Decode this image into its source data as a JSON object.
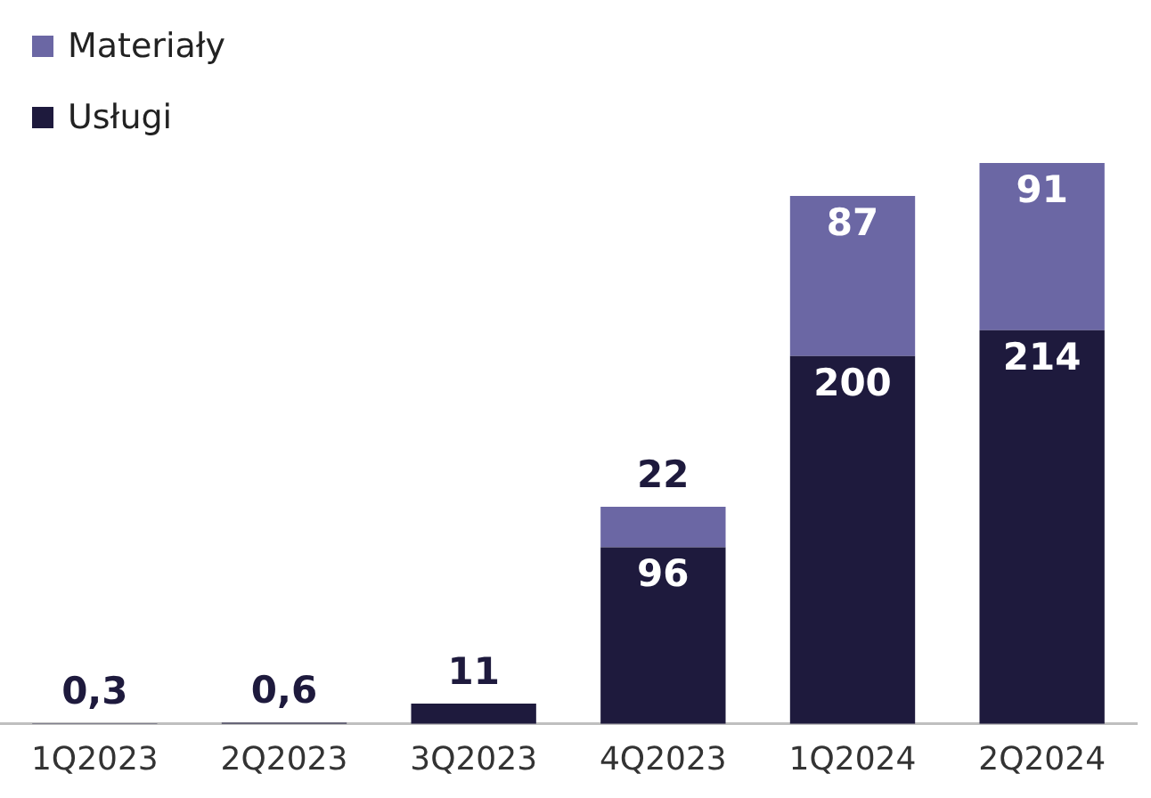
{
  "chart_data": {
    "type": "bar",
    "stacked": true,
    "legend": "top left",
    "data_labels": true,
    "categories": [
      "1Q2023",
      "2Q2023",
      "3Q2023",
      "4Q2023",
      "1Q2024",
      "2Q2024"
    ],
    "series": [
      {
        "name": "Usługi",
        "color": "#1e1a3d",
        "values": [
          0.3,
          0.6,
          11,
          96,
          200,
          214
        ],
        "value_labels": [
          "0,3",
          "0,6",
          "11",
          "96",
          "200",
          "214"
        ]
      },
      {
        "name": "Materiały",
        "color": "#6b67a4",
        "values": [
          null,
          null,
          null,
          22,
          87,
          91
        ],
        "value_labels": [
          null,
          null,
          null,
          "22",
          "87",
          "91"
        ]
      }
    ]
  }
}
